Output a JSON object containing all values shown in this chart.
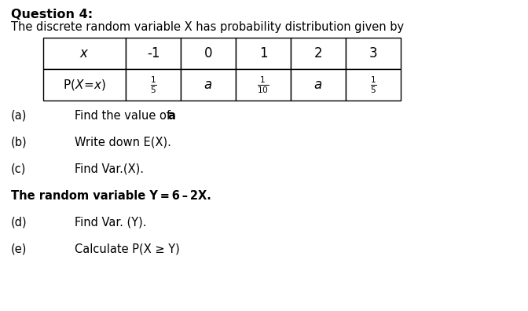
{
  "title_bold": "Question 4:",
  "subtitle": "The discrete random variable X has probability distribution given by",
  "table_headers": [
    "x",
    "-1",
    "0",
    "1",
    "2",
    "3"
  ],
  "row_values": [
    "\\frac{1}{5}",
    "a",
    "\\frac{1}{10}",
    "a",
    "\\frac{1}{5}"
  ],
  "questions": [
    [
      "(a)",
      "Find the value of ",
      "a"
    ],
    [
      "(b)",
      "Write down E(X).",
      ""
    ],
    [
      "(c)",
      "Find Var.(X).",
      ""
    ],
    [
      "bold",
      "The random variable Y = 6 – 2X.",
      ""
    ],
    [
      "(d)",
      "Find Var. (Y).",
      ""
    ],
    [
      "(e)",
      "Calculate P(X ≥ Y)",
      ""
    ]
  ],
  "bg_color": "#ffffff",
  "text_color": "#000000",
  "font_size_title": 11.5,
  "font_size_subtitle": 10.5,
  "font_size_table_header": 11,
  "font_size_table_data": 10,
  "font_size_questions": 10.5
}
